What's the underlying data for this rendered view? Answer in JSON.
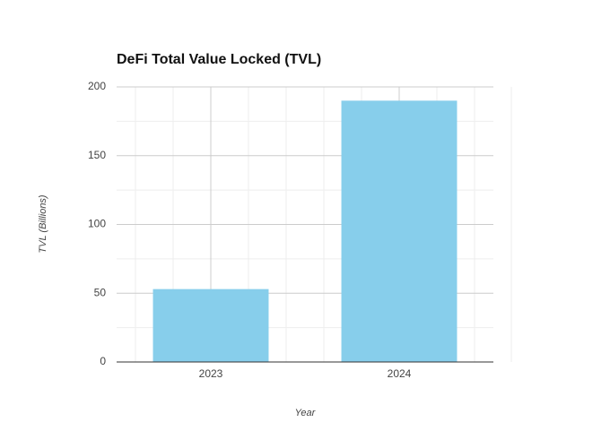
{
  "chart_data": {
    "type": "bar",
    "title": "DeFi Total Value Locked (TVL)",
    "x_label": "Year",
    "y_label": "TVL (Billions)",
    "categories": [
      "2023",
      "2024"
    ],
    "values": [
      53,
      190
    ],
    "color": "#87ceeb",
    "ylim": [
      0,
      200
    ],
    "yticks": [
      0,
      50,
      100,
      150,
      200
    ],
    "grid": true
  }
}
